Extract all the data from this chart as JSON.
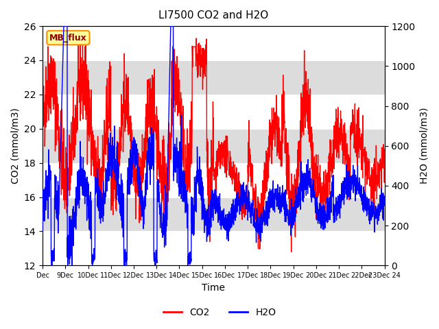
{
  "title": "LI7500 CO2 and H2O",
  "xlabel": "Time",
  "ylabel_left": "CO2 (mmol/m3)",
  "ylabel_right": "H2O (mmol/m3)",
  "xlim": [
    0,
    16
  ],
  "ylim_left": [
    12,
    26
  ],
  "ylim_right": [
    0,
    1200
  ],
  "yticks_left": [
    12,
    14,
    16,
    18,
    20,
    22,
    24,
    26
  ],
  "yticks_right": [
    0,
    200,
    400,
    600,
    800,
    1000,
    1200
  ],
  "xtick_labels": [
    "Dec",
    "9Dec",
    "10Dec",
    "11Dec",
    "12Dec",
    "13Dec",
    "14Dec",
    "15Dec",
    "16Dec",
    "17Dec",
    "18Dec",
    "19Dec",
    "20Dec",
    "21Dec",
    "22Dec",
    "23Dec 24"
  ],
  "co2_color": "#FF0000",
  "h2o_color": "#0000FF",
  "bg_color": "#FFFFFF",
  "plot_bg_color": "#DCDCDC",
  "annotation_text": "MB_flux",
  "annotation_bg": "#FFFF99",
  "annotation_border": "#FF8C00",
  "legend_co2": "CO2",
  "legend_h2o": "H2O",
  "linewidth": 1.0
}
